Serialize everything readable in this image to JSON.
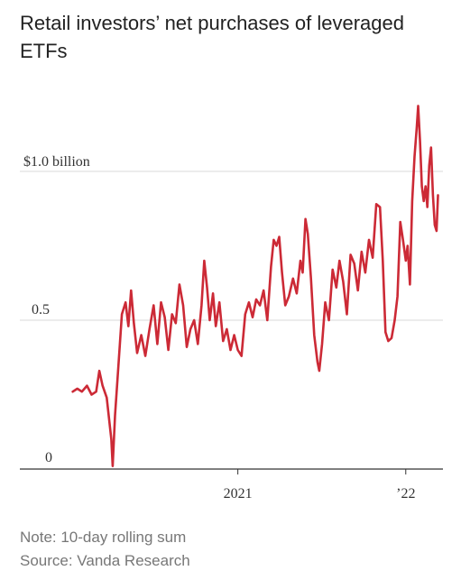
{
  "chart_data": {
    "type": "line",
    "title": "Retail investors’ net purchases of leveraged ETFs",
    "ylim": [
      0,
      1.2
    ],
    "yticks": [
      {
        "value": 0,
        "label": "0"
      },
      {
        "value": 0.5,
        "label": "0.5"
      },
      {
        "value": 1.0,
        "label": "$1.0 billion"
      }
    ],
    "xlim": [
      "2020-01-01",
      "2022-03-15"
    ],
    "xticks": [
      {
        "value": "2021-01-01",
        "label": "2021"
      },
      {
        "value": "2022-01-01",
        "label": "’22"
      }
    ],
    "grid": true,
    "color": "#cc2a36",
    "series": [
      {
        "points": [
          [
            "2020-01-08",
            0.26
          ],
          [
            "2020-01-18",
            0.27
          ],
          [
            "2020-01-28",
            0.26
          ],
          [
            "2020-02-08",
            0.28
          ],
          [
            "2020-02-18",
            0.25
          ],
          [
            "2020-02-28",
            0.26
          ],
          [
            "2020-03-06",
            0.33
          ],
          [
            "2020-03-13",
            0.28
          ],
          [
            "2020-03-22",
            0.24
          ],
          [
            "2020-04-01",
            0.1
          ],
          [
            "2020-04-04",
            0.01
          ],
          [
            "2020-04-09",
            0.18
          ],
          [
            "2020-04-16",
            0.34
          ],
          [
            "2020-04-24",
            0.52
          ],
          [
            "2020-05-02",
            0.56
          ],
          [
            "2020-05-08",
            0.48
          ],
          [
            "2020-05-14",
            0.6
          ],
          [
            "2020-05-20",
            0.49
          ],
          [
            "2020-05-27",
            0.39
          ],
          [
            "2020-06-05",
            0.45
          ],
          [
            "2020-06-14",
            0.38
          ],
          [
            "2020-06-23",
            0.47
          ],
          [
            "2020-07-02",
            0.55
          ],
          [
            "2020-07-10",
            0.42
          ],
          [
            "2020-07-18",
            0.56
          ],
          [
            "2020-07-26",
            0.51
          ],
          [
            "2020-08-03",
            0.4
          ],
          [
            "2020-08-11",
            0.52
          ],
          [
            "2020-08-19",
            0.49
          ],
          [
            "2020-08-27",
            0.62
          ],
          [
            "2020-09-04",
            0.55
          ],
          [
            "2020-09-12",
            0.41
          ],
          [
            "2020-09-20",
            0.47
          ],
          [
            "2020-09-28",
            0.5
          ],
          [
            "2020-10-06",
            0.42
          ],
          [
            "2020-10-14",
            0.55
          ],
          [
            "2020-10-20",
            0.7
          ],
          [
            "2020-10-26",
            0.61
          ],
          [
            "2020-11-01",
            0.5
          ],
          [
            "2020-11-08",
            0.59
          ],
          [
            "2020-11-14",
            0.48
          ],
          [
            "2020-11-22",
            0.56
          ],
          [
            "2020-11-30",
            0.43
          ],
          [
            "2020-12-08",
            0.47
          ],
          [
            "2020-12-16",
            0.4
          ],
          [
            "2020-12-24",
            0.45
          ],
          [
            "2021-01-01",
            0.4
          ],
          [
            "2021-01-09",
            0.38
          ],
          [
            "2021-01-17",
            0.52
          ],
          [
            "2021-01-25",
            0.56
          ],
          [
            "2021-02-02",
            0.51
          ],
          [
            "2021-02-10",
            0.57
          ],
          [
            "2021-02-18",
            0.55
          ],
          [
            "2021-02-26",
            0.6
          ],
          [
            "2021-03-06",
            0.5
          ],
          [
            "2021-03-14",
            0.68
          ],
          [
            "2021-03-20",
            0.77
          ],
          [
            "2021-03-26",
            0.75
          ],
          [
            "2021-04-01",
            0.78
          ],
          [
            "2021-04-07",
            0.66
          ],
          [
            "2021-04-14",
            0.55
          ],
          [
            "2021-04-22",
            0.58
          ],
          [
            "2021-05-01",
            0.64
          ],
          [
            "2021-05-09",
            0.59
          ],
          [
            "2021-05-17",
            0.7
          ],
          [
            "2021-05-22",
            0.66
          ],
          [
            "2021-05-28",
            0.84
          ],
          [
            "2021-06-02",
            0.79
          ],
          [
            "2021-06-09",
            0.64
          ],
          [
            "2021-06-16",
            0.45
          ],
          [
            "2021-06-23",
            0.36
          ],
          [
            "2021-06-27",
            0.33
          ],
          [
            "2021-07-03",
            0.42
          ],
          [
            "2021-07-10",
            0.56
          ],
          [
            "2021-07-18",
            0.5
          ],
          [
            "2021-07-26",
            0.67
          ],
          [
            "2021-08-03",
            0.61
          ],
          [
            "2021-08-10",
            0.7
          ],
          [
            "2021-08-18",
            0.63
          ],
          [
            "2021-08-26",
            0.52
          ],
          [
            "2021-09-03",
            0.72
          ],
          [
            "2021-09-11",
            0.69
          ],
          [
            "2021-09-19",
            0.6
          ],
          [
            "2021-09-27",
            0.73
          ],
          [
            "2021-10-05",
            0.66
          ],
          [
            "2021-10-13",
            0.77
          ],
          [
            "2021-10-21",
            0.71
          ],
          [
            "2021-10-29",
            0.89
          ],
          [
            "2021-11-06",
            0.88
          ],
          [
            "2021-11-12",
            0.7
          ],
          [
            "2021-11-18",
            0.46
          ],
          [
            "2021-11-24",
            0.43
          ],
          [
            "2021-12-01",
            0.44
          ],
          [
            "2021-12-08",
            0.5
          ],
          [
            "2021-12-14",
            0.58
          ],
          [
            "2021-12-20",
            0.83
          ],
          [
            "2021-12-26",
            0.77
          ],
          [
            "2022-01-01",
            0.7
          ],
          [
            "2022-01-05",
            0.75
          ],
          [
            "2022-01-10",
            0.62
          ],
          [
            "2022-01-15",
            0.9
          ],
          [
            "2022-01-20",
            1.05
          ],
          [
            "2022-01-25",
            1.15
          ],
          [
            "2022-01-28",
            1.22
          ],
          [
            "2022-02-01",
            1.1
          ],
          [
            "2022-02-05",
            0.95
          ],
          [
            "2022-02-09",
            0.9
          ],
          [
            "2022-02-13",
            0.95
          ],
          [
            "2022-02-17",
            0.88
          ],
          [
            "2022-02-21",
            1.02
          ],
          [
            "2022-02-25",
            1.08
          ],
          [
            "2022-03-01",
            0.92
          ],
          [
            "2022-03-05",
            0.82
          ],
          [
            "2022-03-09",
            0.8
          ],
          [
            "2022-03-12",
            0.92
          ]
        ]
      }
    ]
  },
  "notes": {
    "note": "Note: 10-day rolling sum",
    "source": "Source: Vanda Research"
  }
}
